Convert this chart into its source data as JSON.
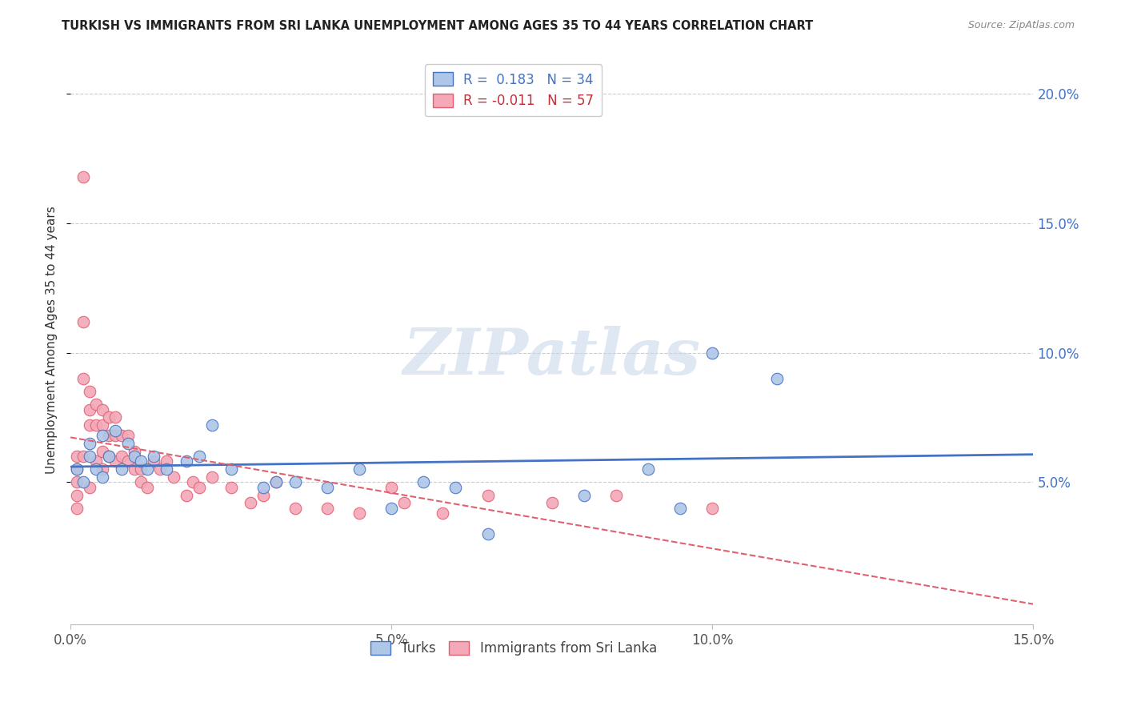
{
  "title": "TURKISH VS IMMIGRANTS FROM SRI LANKA UNEMPLOYMENT AMONG AGES 35 TO 44 YEARS CORRELATION CHART",
  "source": "Source: ZipAtlas.com",
  "ylabel": "Unemployment Among Ages 35 to 44 years",
  "xlim": [
    0.0,
    0.15
  ],
  "ylim": [
    -0.005,
    0.215
  ],
  "xticks": [
    0.0,
    0.05,
    0.1,
    0.15
  ],
  "xtick_labels": [
    "0.0%",
    "5.0%",
    "10.0%",
    "15.0%"
  ],
  "yticks_right": [
    0.05,
    0.1,
    0.15,
    0.2
  ],
  "ytick_labels_right": [
    "5.0%",
    "10.0%",
    "15.0%",
    "20.0%"
  ],
  "watermark": "ZIPatlas",
  "legend_blue_label": "R =  0.183   N = 34",
  "legend_pink_label": "R = -0.011   N = 57",
  "turks_color": "#aec6e8",
  "srilanka_color": "#f4a8b8",
  "turks_edge_color": "#4472c4",
  "srilanka_edge_color": "#e06070",
  "turks_line_color": "#4472c4",
  "srilanka_line_color": "#e06070",
  "legend_text_blue": "#4472c4",
  "legend_text_pink": "#c0303a",
  "turks_x": [
    0.001,
    0.002,
    0.003,
    0.003,
    0.004,
    0.005,
    0.005,
    0.006,
    0.007,
    0.008,
    0.009,
    0.01,
    0.011,
    0.012,
    0.013,
    0.015,
    0.018,
    0.02,
    0.022,
    0.025,
    0.03,
    0.032,
    0.035,
    0.04,
    0.045,
    0.05,
    0.055,
    0.06,
    0.065,
    0.08,
    0.09,
    0.095,
    0.1,
    0.11
  ],
  "turks_y": [
    0.055,
    0.05,
    0.065,
    0.06,
    0.055,
    0.068,
    0.052,
    0.06,
    0.07,
    0.055,
    0.065,
    0.06,
    0.058,
    0.055,
    0.06,
    0.055,
    0.058,
    0.06,
    0.072,
    0.055,
    0.048,
    0.05,
    0.05,
    0.048,
    0.055,
    0.04,
    0.05,
    0.048,
    0.03,
    0.045,
    0.055,
    0.04,
    0.1,
    0.09
  ],
  "srilanka_x": [
    0.001,
    0.001,
    0.001,
    0.001,
    0.001,
    0.002,
    0.002,
    0.002,
    0.002,
    0.003,
    0.003,
    0.003,
    0.003,
    0.004,
    0.004,
    0.004,
    0.005,
    0.005,
    0.005,
    0.005,
    0.006,
    0.006,
    0.006,
    0.007,
    0.007,
    0.007,
    0.008,
    0.008,
    0.009,
    0.009,
    0.01,
    0.01,
    0.011,
    0.011,
    0.012,
    0.013,
    0.014,
    0.015,
    0.016,
    0.018,
    0.019,
    0.02,
    0.022,
    0.025,
    0.028,
    0.03,
    0.032,
    0.035,
    0.04,
    0.045,
    0.05,
    0.052,
    0.058,
    0.065,
    0.075,
    0.085,
    0.1
  ],
  "srilanka_y": [
    0.06,
    0.055,
    0.05,
    0.045,
    0.04,
    0.168,
    0.112,
    0.09,
    0.06,
    0.085,
    0.078,
    0.072,
    0.048,
    0.08,
    0.072,
    0.058,
    0.078,
    0.072,
    0.062,
    0.055,
    0.075,
    0.068,
    0.06,
    0.075,
    0.068,
    0.058,
    0.068,
    0.06,
    0.068,
    0.058,
    0.062,
    0.055,
    0.055,
    0.05,
    0.048,
    0.058,
    0.055,
    0.058,
    0.052,
    0.045,
    0.05,
    0.048,
    0.052,
    0.048,
    0.042,
    0.045,
    0.05,
    0.04,
    0.04,
    0.038,
    0.048,
    0.042,
    0.038,
    0.045,
    0.042,
    0.045,
    0.04
  ]
}
